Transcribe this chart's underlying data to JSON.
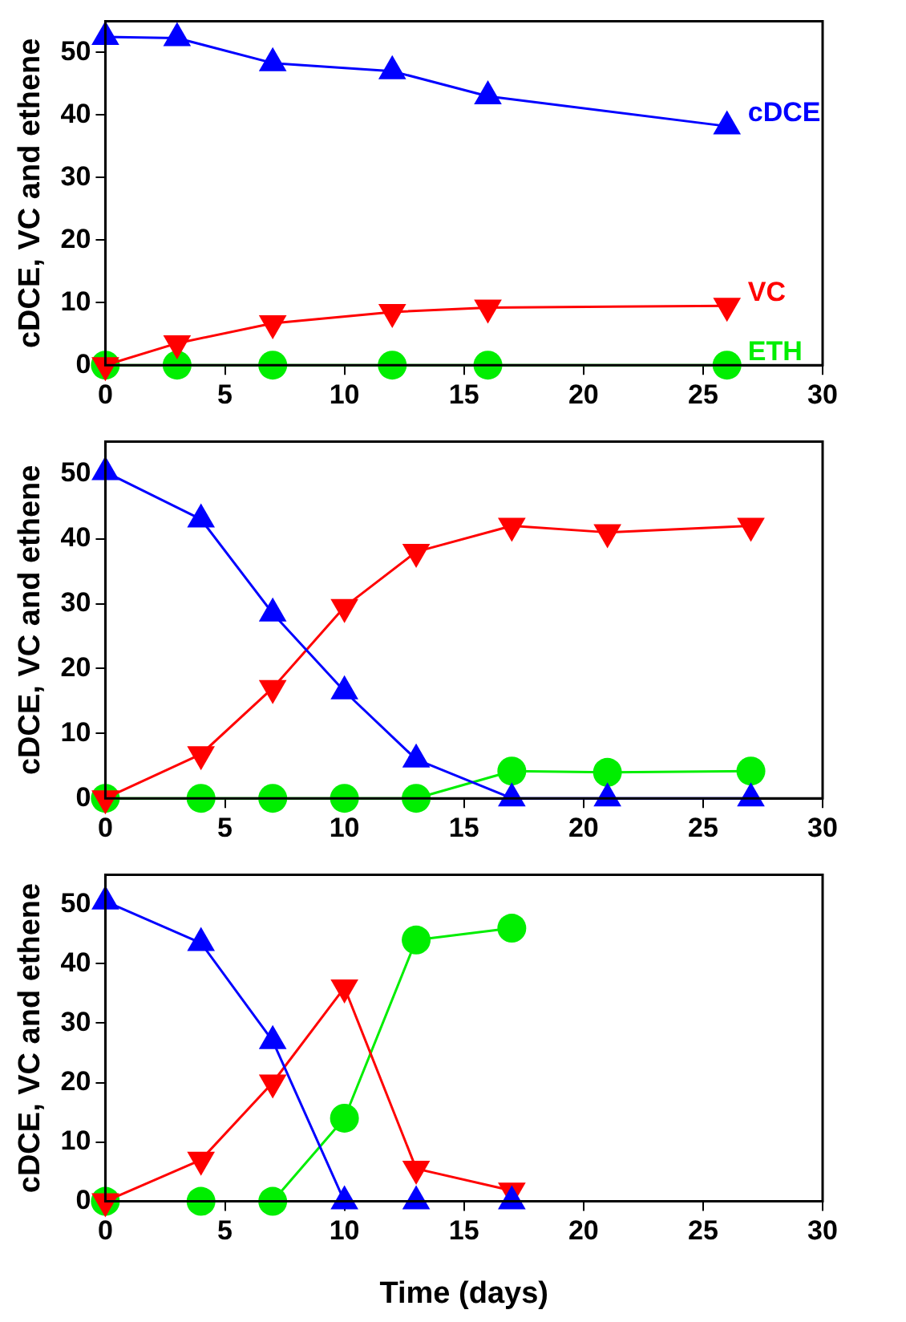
{
  "chart_data": [
    {
      "type": "line",
      "ylabel": "cDCE, VC and ethene",
      "xlim": [
        0,
        30
      ],
      "xticks": [
        0,
        5,
        10,
        15,
        20,
        25,
        30
      ],
      "ylim": [
        0,
        55
      ],
      "yticks": [
        0,
        10,
        20,
        30,
        40,
        50
      ],
      "grid": false,
      "legend": false,
      "series": [
        {
          "name": "cDCE",
          "color": "#0000ff",
          "marker": "triangle",
          "x": [
            0,
            3,
            7,
            12,
            16,
            26
          ],
          "values": [
            52.5,
            52.3,
            48.3,
            47,
            43,
            38.2
          ]
        },
        {
          "name": "VC",
          "color": "#ff0000",
          "marker": "triangle_down",
          "x": [
            0,
            3,
            7,
            12,
            16,
            26
          ],
          "values": [
            0,
            3.5,
            6.7,
            8.5,
            9.2,
            9.5
          ]
        },
        {
          "name": "ETH",
          "color": "#00ee00",
          "marker": "circle",
          "x": [
            0,
            3,
            7,
            12,
            16,
            26
          ],
          "values": [
            0,
            0,
            0,
            0,
            0,
            0
          ]
        }
      ]
    },
    {
      "type": "line",
      "ylabel": "cDCE, VC and ethene",
      "xlim": [
        0,
        30
      ],
      "xticks": [
        0,
        5,
        10,
        15,
        20,
        25,
        30
      ],
      "ylim": [
        0,
        55
      ],
      "yticks": [
        0,
        10,
        20,
        30,
        40,
        50
      ],
      "grid": false,
      "legend": false,
      "series": [
        {
          "color": "#0000ff",
          "marker": "triangle",
          "x": [
            0,
            4,
            7,
            10,
            13,
            17,
            21,
            27
          ],
          "values": [
            50.3,
            43,
            28.5,
            16.5,
            6,
            0,
            0,
            0
          ]
        },
        {
          "color": "#ff0000",
          "marker": "triangle_down",
          "x": [
            0,
            4,
            7,
            10,
            13,
            17,
            21,
            27
          ],
          "values": [
            0,
            6.8,
            17,
            29.5,
            38,
            42,
            41,
            42
          ]
        },
        {
          "color": "#00ee00",
          "marker": "circle",
          "x": [
            0,
            4,
            7,
            10,
            13,
            17,
            21,
            27
          ],
          "values": [
            0,
            0,
            0,
            0,
            0,
            4.2,
            4,
            4.2
          ]
        }
      ]
    },
    {
      "type": "line",
      "xlabel": "Time (days)",
      "ylabel": "cDCE, VC and ethene",
      "xlim": [
        0,
        30
      ],
      "xticks": [
        0,
        5,
        10,
        15,
        20,
        25,
        30
      ],
      "ylim": [
        0,
        55
      ],
      "yticks": [
        0,
        10,
        20,
        30,
        40,
        50
      ],
      "grid": false,
      "legend": false,
      "series": [
        {
          "color": "#0000ff",
          "marker": "triangle",
          "x": [
            0,
            4,
            7,
            10,
            13,
            17
          ],
          "values": [
            50.5,
            43.5,
            27,
            0,
            0,
            0
          ]
        },
        {
          "color": "#ff0000",
          "marker": "triangle_down",
          "x": [
            0,
            4,
            7,
            10,
            13,
            17
          ],
          "values": [
            0,
            7,
            20,
            36,
            5.5,
            1.8
          ]
        },
        {
          "color": "#00ee00",
          "marker": "circle",
          "x": [
            0,
            4,
            7,
            10,
            13,
            17
          ],
          "values": [
            0,
            0,
            0,
            14,
            44,
            46
          ]
        }
      ]
    }
  ]
}
